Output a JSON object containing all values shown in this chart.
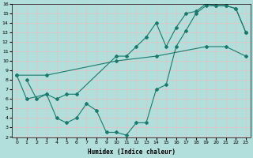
{
  "xlabel": "Humidex (Indice chaleur)",
  "xlim": [
    -0.5,
    23.5
  ],
  "ylim": [
    2,
    16
  ],
  "xticks": [
    0,
    1,
    2,
    3,
    4,
    5,
    6,
    7,
    8,
    9,
    10,
    11,
    12,
    13,
    14,
    15,
    16,
    17,
    18,
    19,
    20,
    21,
    22,
    23
  ],
  "yticks": [
    2,
    3,
    4,
    5,
    6,
    7,
    8,
    9,
    10,
    11,
    12,
    13,
    14,
    15,
    16
  ],
  "bg_color": "#b2dfdb",
  "line_color": "#1a7a6e",
  "grid_color": "#e8f5f3",
  "line1_x": [
    0,
    3,
    10,
    14,
    19,
    21,
    23
  ],
  "line1_y": [
    8.5,
    8.5,
    10.0,
    10.5,
    11.5,
    11.5,
    10.5
  ],
  "line2_x": [
    0,
    1,
    3,
    4,
    5,
    6,
    10,
    11,
    12,
    13,
    14,
    15,
    16,
    17,
    18,
    19,
    20,
    21,
    22,
    23
  ],
  "line2_y": [
    8.5,
    6.0,
    6.5,
    6.0,
    6.5,
    6.5,
    10.5,
    10.5,
    11.5,
    12.5,
    14.0,
    11.5,
    13.5,
    15.0,
    15.2,
    16.0,
    15.8,
    15.8,
    15.5,
    13.0
  ],
  "line3_x": [
    1,
    2,
    3,
    4,
    5,
    6,
    7,
    8,
    9,
    10,
    11,
    12,
    13,
    14,
    15,
    16,
    17,
    18,
    19,
    20,
    21,
    22,
    23
  ],
  "line3_y": [
    8.0,
    6.0,
    6.5,
    4.0,
    3.5,
    4.0,
    5.5,
    4.8,
    2.5,
    2.5,
    2.2,
    3.5,
    3.5,
    7.0,
    7.5,
    11.5,
    13.2,
    15.0,
    15.8,
    15.8,
    15.8,
    15.5,
    13.0
  ]
}
